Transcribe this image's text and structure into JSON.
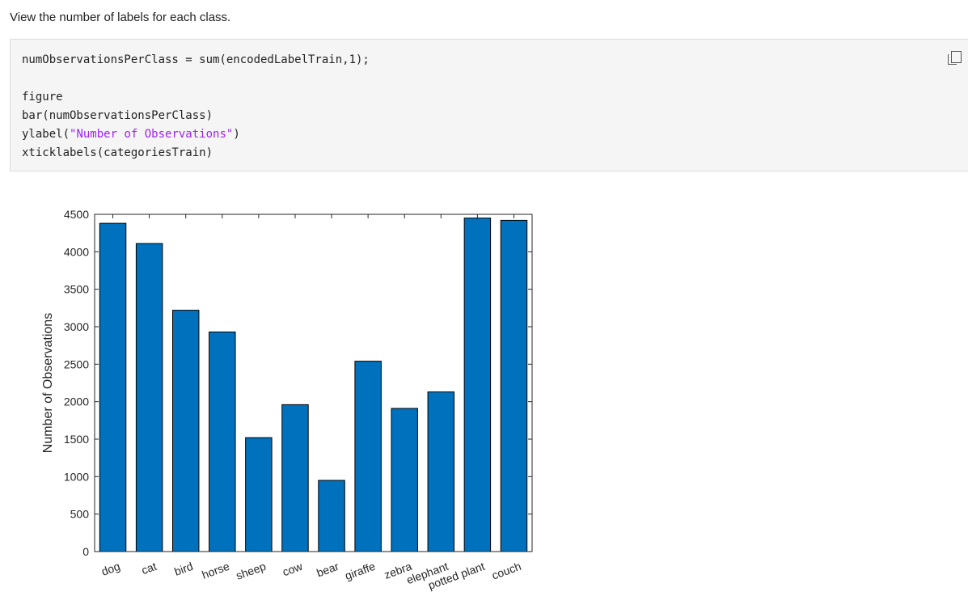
{
  "intro": "View the number of labels for each class.",
  "code": {
    "blocks": [
      [
        [
          "numObservationsPerClass = sum(encodedLabelTrain,1);"
        ]
      ],
      [
        [
          "figure"
        ],
        [
          "bar(numObservationsPerClass)"
        ],
        [
          "ylabel(",
          "\"Number of Observations\"",
          ")"
        ],
        [
          "xticklabels(categoriesTrain)"
        ]
      ]
    ]
  },
  "chart_data": {
    "type": "bar",
    "ylabel": "Number of Observations",
    "categories": [
      "dog",
      "cat",
      "bird",
      "horse",
      "sheep",
      "cow",
      "bear",
      "giraffe",
      "zebra",
      "elephant",
      "potted plant",
      "couch"
    ],
    "values": [
      4380,
      4110,
      3220,
      2930,
      1520,
      1960,
      950,
      2540,
      1910,
      2130,
      4450,
      4420
    ],
    "color": "#0072bd",
    "ylim": [
      0,
      4500
    ],
    "yticks": [
      0,
      500,
      1000,
      1500,
      2000,
      2500,
      3000,
      3500,
      4000,
      4500
    ]
  }
}
